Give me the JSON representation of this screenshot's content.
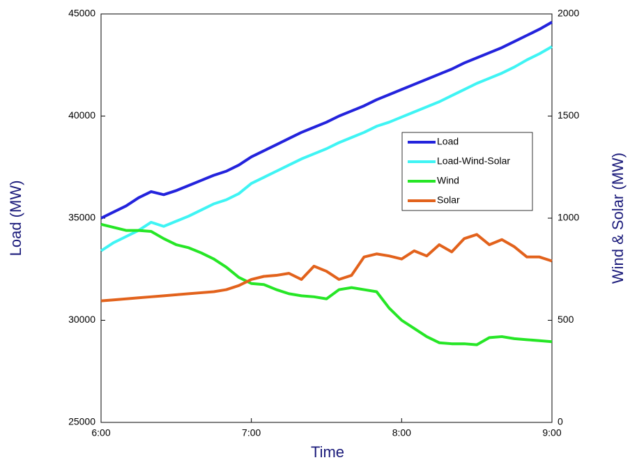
{
  "chart_data": {
    "type": "line",
    "x_label": "Time",
    "y_label": "Load (MW)",
    "y2_label": "Wind & Solar (MW)",
    "x": [
      360,
      365,
      370,
      375,
      380,
      385,
      390,
      395,
      400,
      405,
      410,
      415,
      420,
      425,
      430,
      435,
      440,
      445,
      450,
      455,
      460,
      465,
      470,
      475,
      480,
      485,
      490,
      495,
      500,
      505,
      510,
      515,
      520,
      525,
      530,
      535,
      540
    ],
    "xlim": [
      360,
      540
    ],
    "xticks": [
      {
        "value": 360,
        "label": "6:00"
      },
      {
        "value": 420,
        "label": "7:00"
      },
      {
        "value": 480,
        "label": "8:00"
      },
      {
        "value": 540,
        "label": "9:00"
      }
    ],
    "ylim": [
      25000,
      45000
    ],
    "yticks": [
      25000,
      30000,
      35000,
      40000,
      45000
    ],
    "y2lim": [
      0,
      2000
    ],
    "y2ticks": [
      0,
      500,
      1000,
      1500,
      2000
    ],
    "legend": "upper right",
    "series": [
      {
        "name": "Load",
        "color": "#2323dc",
        "axis": "y",
        "values": [
          35000,
          35300,
          35600,
          36000,
          36300,
          36150,
          36350,
          36600,
          36850,
          37100,
          37300,
          37600,
          38000,
          38300,
          38600,
          38900,
          39200,
          39450,
          39700,
          40000,
          40250,
          40500,
          40800,
          41050,
          41300,
          41550,
          41800,
          42050,
          42300,
          42600,
          42850,
          43100,
          43350,
          43650,
          43950,
          44250,
          44600
        ]
      },
      {
        "name": "Load-Wind-Solar",
        "color": "#3ff4f4",
        "axis": "y",
        "values": [
          33400,
          33800,
          34100,
          34400,
          34800,
          34600,
          34850,
          35100,
          35400,
          35700,
          35900,
          36200,
          36700,
          37000,
          37300,
          37600,
          37900,
          38150,
          38400,
          38700,
          38950,
          39200,
          39500,
          39700,
          39950,
          40200,
          40450,
          40700,
          41000,
          41300,
          41600,
          41850,
          42100,
          42400,
          42750,
          43050,
          43400
        ]
      },
      {
        "name": "Wind",
        "color": "#26e626",
        "axis": "y2",
        "values": [
          970,
          955,
          940,
          940,
          935,
          900,
          870,
          855,
          830,
          800,
          760,
          710,
          680,
          675,
          650,
          630,
          620,
          615,
          605,
          650,
          660,
          650,
          640,
          560,
          500,
          460,
          420,
          390,
          385,
          385,
          380,
          415,
          420,
          410,
          405,
          400,
          395
        ]
      },
      {
        "name": "Solar",
        "color": "#e2621c",
        "axis": "y2",
        "values": [
          595,
          600,
          605,
          610,
          615,
          620,
          625,
          630,
          635,
          640,
          650,
          670,
          700,
          715,
          720,
          730,
          700,
          765,
          740,
          700,
          720,
          810,
          825,
          815,
          800,
          840,
          815,
          870,
          835,
          900,
          920,
          870,
          895,
          860,
          810,
          810,
          790
        ]
      }
    ]
  }
}
